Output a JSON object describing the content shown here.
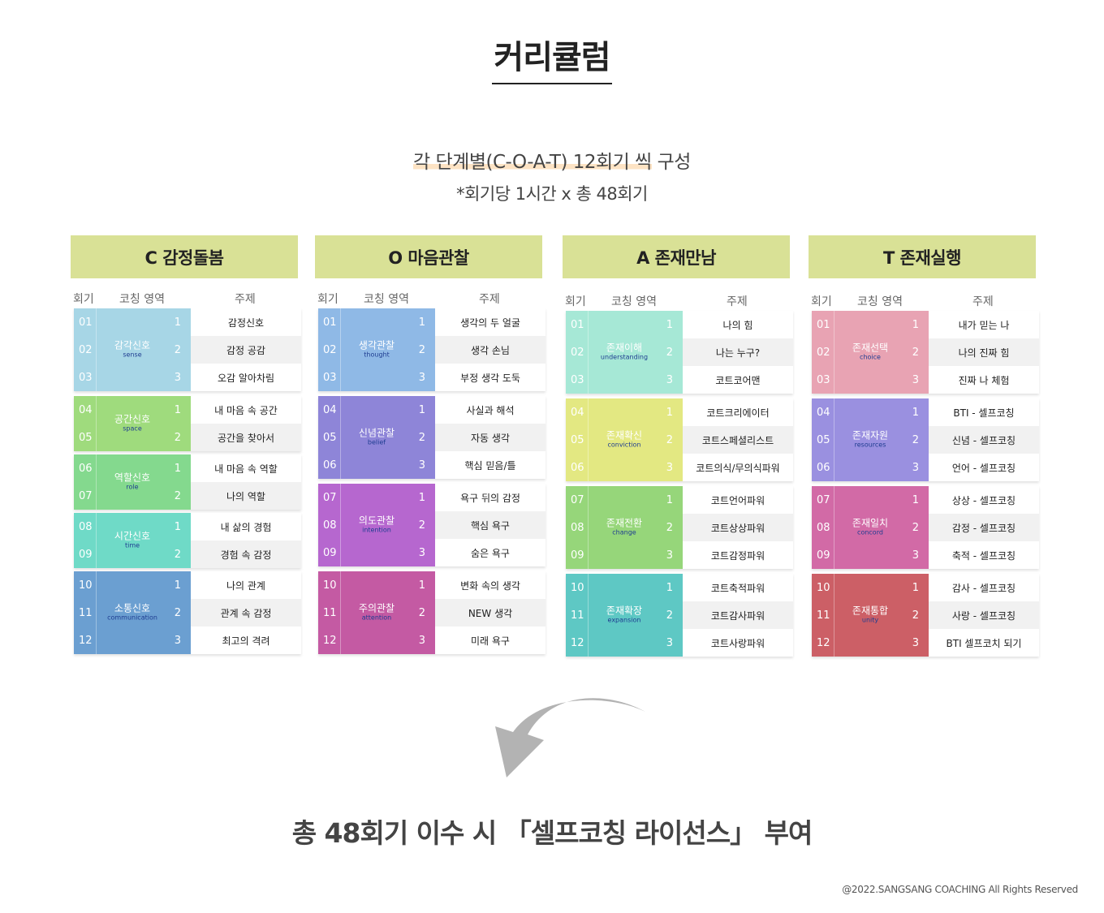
{
  "title": "커리큘럼",
  "subtitle_highlight": "각 단계별(C-O-A-T) 12회기 씩",
  "subtitle_rest": " 구성",
  "subtitle2": "*회기당 1시간 x 총 48회기",
  "table_headers": {
    "session": "회기",
    "area": "코칭 영역",
    "topic": "주제"
  },
  "columns": [
    {
      "title": "C 감정돌봄",
      "groups": [
        {
          "color": "#a7d6e6",
          "ko": "감각신호",
          "en": "sense",
          "rows": [
            {
              "num": "01",
              "idx": "1",
              "topic": "감정신호"
            },
            {
              "num": "02",
              "idx": "2",
              "topic": "감정 공감"
            },
            {
              "num": "03",
              "idx": "3",
              "topic": "오감 알아차림"
            }
          ]
        },
        {
          "color": "#9fdb7d",
          "ko": "공간신호",
          "en": "space",
          "rows": [
            {
              "num": "04",
              "idx": "1",
              "topic": "내 마음 속 공간"
            },
            {
              "num": "05",
              "idx": "2",
              "topic": "공간을 찾아서"
            }
          ]
        },
        {
          "color": "#84d98e",
          "ko": "역할신호",
          "en": "role",
          "rows": [
            {
              "num": "06",
              "idx": "1",
              "topic": "내 마음 속 역할"
            },
            {
              "num": "07",
              "idx": "2",
              "topic": "나의 역할"
            }
          ]
        },
        {
          "color": "#6fdac7",
          "ko": "시간신호",
          "en": "time",
          "rows": [
            {
              "num": "08",
              "idx": "1",
              "topic": "내 삶의 경험"
            },
            {
              "num": "09",
              "idx": "2",
              "topic": "경험 속 감정"
            }
          ]
        },
        {
          "color": "#6b9fd1",
          "ko": "소통신호",
          "en": "communication",
          "rows": [
            {
              "num": "10",
              "idx": "1",
              "topic": "나의 관계"
            },
            {
              "num": "11",
              "idx": "2",
              "topic": "관계 속 감정"
            },
            {
              "num": "12",
              "idx": "3",
              "topic": "최고의 격려"
            }
          ]
        }
      ]
    },
    {
      "title": "O 마음관찰",
      "groups": [
        {
          "color": "#8fb9e6",
          "ko": "생각관찰",
          "en": "thought",
          "rows": [
            {
              "num": "01",
              "idx": "1",
              "topic": "생각의 두 얼굴"
            },
            {
              "num": "02",
              "idx": "2",
              "topic": "생각 손님"
            },
            {
              "num": "03",
              "idx": "3",
              "topic": "부정 생각 도둑"
            }
          ]
        },
        {
          "color": "#8e85d8",
          "ko": "신념관찰",
          "en": "belief",
          "rows": [
            {
              "num": "04",
              "idx": "1",
              "topic": "사실과 해석"
            },
            {
              "num": "05",
              "idx": "2",
              "topic": "자동 생각"
            },
            {
              "num": "06",
              "idx": "3",
              "topic": "핵심 믿음/틀"
            }
          ]
        },
        {
          "color": "#b667cf",
          "ko": "의도관찰",
          "en": "intention",
          "rows": [
            {
              "num": "07",
              "idx": "1",
              "topic": "욕구 뒤의 감정"
            },
            {
              "num": "08",
              "idx": "2",
              "topic": "핵심 욕구"
            },
            {
              "num": "09",
              "idx": "3",
              "topic": "숨은 욕구"
            }
          ]
        },
        {
          "color": "#c45aa3",
          "ko": "주의관찰",
          "en": "attention",
          "rows": [
            {
              "num": "10",
              "idx": "1",
              "topic": "변화 속의 생각"
            },
            {
              "num": "11",
              "idx": "2",
              "topic": "NEW 생각"
            },
            {
              "num": "12",
              "idx": "3",
              "topic": "미래 욕구"
            }
          ]
        }
      ]
    },
    {
      "title": "A 존재만남",
      "groups": [
        {
          "color": "#a6e8d6",
          "ko": "존재이해",
          "en": "understanding",
          "rows": [
            {
              "num": "01",
              "idx": "1",
              "topic": "나의 힘"
            },
            {
              "num": "02",
              "idx": "2",
              "topic": "나는 누구?"
            },
            {
              "num": "03",
              "idx": "3",
              "topic": "코트코어맨"
            }
          ]
        },
        {
          "color": "#e3e882",
          "ko": "존재확신",
          "en": "conviction",
          "rows": [
            {
              "num": "04",
              "idx": "1",
              "topic": "코트크리에이터"
            },
            {
              "num": "05",
              "idx": "2",
              "topic": "코트스페셜리스트"
            },
            {
              "num": "06",
              "idx": "3",
              "topic": "코트의식/무의식파워"
            }
          ]
        },
        {
          "color": "#96d67a",
          "ko": "존재전환",
          "en": "change",
          "rows": [
            {
              "num": "07",
              "idx": "1",
              "topic": "코트언어파워"
            },
            {
              "num": "08",
              "idx": "2",
              "topic": "코트상상파워"
            },
            {
              "num": "09",
              "idx": "3",
              "topic": "코트감정파워"
            }
          ]
        },
        {
          "color": "#5ec8c4",
          "ko": "존재확장",
          "en": "expansion",
          "rows": [
            {
              "num": "10",
              "idx": "1",
              "topic": "코트축적파워"
            },
            {
              "num": "11",
              "idx": "2",
              "topic": "코트감사파워"
            },
            {
              "num": "12",
              "idx": "3",
              "topic": "코트사랑파워"
            }
          ]
        }
      ]
    },
    {
      "title": "T 존재실행",
      "groups": [
        {
          "color": "#e8a3b3",
          "ko": "존재선택",
          "en": "choice",
          "rows": [
            {
              "num": "01",
              "idx": "1",
              "topic": "내가 믿는 나"
            },
            {
              "num": "02",
              "idx": "2",
              "topic": "나의 진짜 힘"
            },
            {
              "num": "03",
              "idx": "3",
              "topic": "진짜 나 체험"
            }
          ]
        },
        {
          "color": "#9a90e0",
          "ko": "존재자원",
          "en": "resources",
          "rows": [
            {
              "num": "04",
              "idx": "1",
              "topic": "BTI - 셀프코칭"
            },
            {
              "num": "05",
              "idx": "2",
              "topic": "신념 - 셀프코칭"
            },
            {
              "num": "06",
              "idx": "3",
              "topic": "언어 - 셀프코칭"
            }
          ]
        },
        {
          "color": "#d26aa6",
          "ko": "존재일치",
          "en": "concord",
          "rows": [
            {
              "num": "07",
              "idx": "1",
              "topic": "상상 - 셀프코칭"
            },
            {
              "num": "08",
              "idx": "2",
              "topic": "감정 - 셀프코칭"
            },
            {
              "num": "09",
              "idx": "3",
              "topic": "축적 - 셀프코칭"
            }
          ]
        },
        {
          "color": "#cc5f66",
          "ko": "존재통합",
          "en": "unity",
          "rows": [
            {
              "num": "10",
              "idx": "1",
              "topic": "감사 - 셀프코칭"
            },
            {
              "num": "11",
              "idx": "2",
              "topic": "사랑 - 셀프코칭"
            },
            {
              "num": "12",
              "idx": "3",
              "topic": "BTI 셀프코치 되기"
            }
          ]
        }
      ]
    }
  ],
  "arrow_icon": "curved-arrow-down-left-icon",
  "footer_text": "총 48회기 이수 시 「셀프코칭 라이선스」 부여",
  "copyright": "@2022.SANGSANG COACHING All Rights Reserved"
}
